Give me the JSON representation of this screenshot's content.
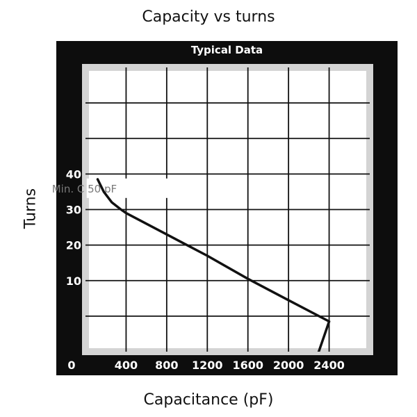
{
  "chart_data": {
    "type": "line",
    "title": "Capacity vs turns",
    "panel_title": "Typical Data",
    "xlabel": "Capacitance (pF)",
    "ylabel": "Turns",
    "xlim": [
      0,
      2800
    ],
    "ylim": [
      -10,
      70
    ],
    "x_ticks": [
      0,
      400,
      800,
      1200,
      1600,
      2000,
      2400
    ],
    "x_tick_labels": [
      "0",
      "400",
      "800",
      "1200",
      "1600",
      "2000",
      "2400"
    ],
    "y_ticks": [
      10,
      20,
      30,
      40
    ],
    "y_tick_labels": [
      "10",
      "20",
      "30",
      "40"
    ],
    "grid": true,
    "series": [
      {
        "x": [
          120,
          180,
          260,
          350,
          400,
          800,
          1200,
          1600,
          2000,
          2400,
          2280
        ],
        "y": [
          38.5,
          35,
          32,
          30,
          29,
          23,
          17,
          10.5,
          4.5,
          -1.5,
          -11.5
        ]
      }
    ],
    "annotations": [
      {
        "text": "Min. C 50 pF",
        "x": 320,
        "y": 36
      }
    ],
    "colors": {
      "frame": "#0d0d0d",
      "plot_border": "#d4d4d4",
      "plot_bg": "#ffffff",
      "grid": "#111111",
      "line": "#111111",
      "tick_text": "#ffffff",
      "annotation_text": "#7a7a7a"
    }
  }
}
